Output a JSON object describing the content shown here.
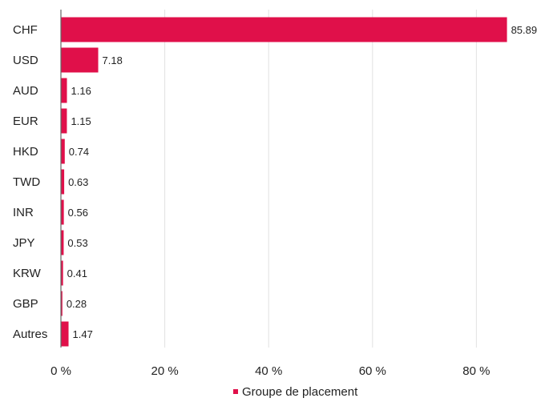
{
  "chart_data": {
    "type": "bar",
    "orientation": "horizontal",
    "categories": [
      "CHF",
      "USD",
      "AUD",
      "EUR",
      "HKD",
      "TWD",
      "INR",
      "JPY",
      "KRW",
      "GBP",
      "Autres"
    ],
    "value_labels": [
      "85.89",
      "7.18",
      "1.16",
      "1.15",
      "0.74",
      "0.63",
      "0.56",
      "0.53",
      "0.41",
      "0.28",
      "1.47"
    ],
    "series": [
      {
        "name": "Groupe de placement",
        "values": [
          85.89,
          7.18,
          1.16,
          1.15,
          0.74,
          0.63,
          0.56,
          0.53,
          0.41,
          0.28,
          1.47
        ]
      }
    ],
    "xlim": [
      0,
      90
    ],
    "xticks": [
      0,
      20,
      40,
      60,
      80
    ],
    "xtick_labels": [
      "0 %",
      "20 %",
      "40 %",
      "60 %",
      "80 %"
    ],
    "grid": "vertical",
    "legend": "bottom-center",
    "bar_color": "#e0104a",
    "title": "",
    "xlabel": "",
    "ylabel": ""
  }
}
